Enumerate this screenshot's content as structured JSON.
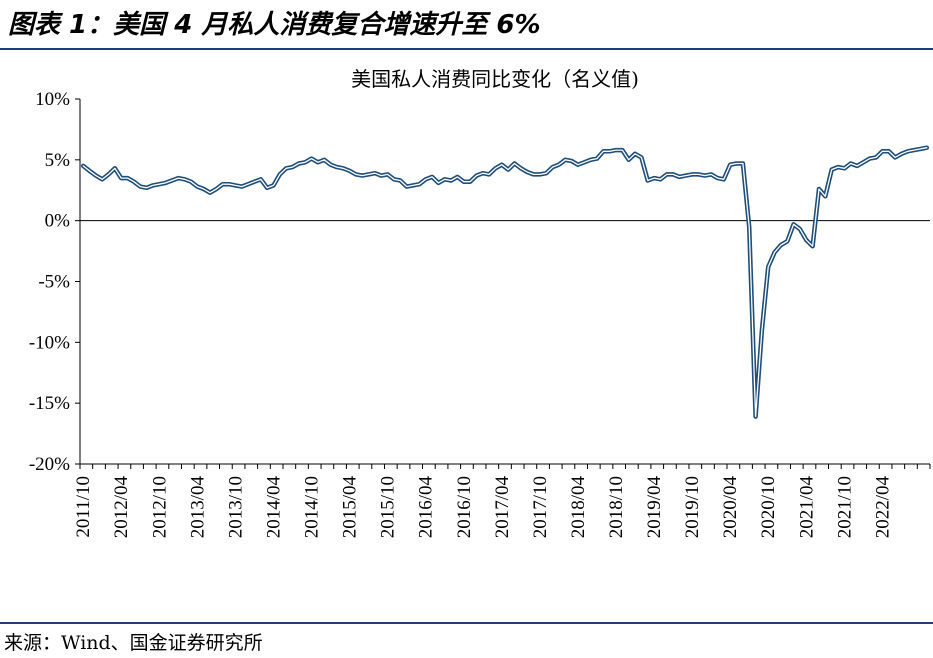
{
  "figure": {
    "title": "图表 1：美国 4 月私人消费复合增速升至 6%",
    "source": "来源：Wind、国金证券研究所"
  },
  "colors": {
    "line_outer": "#1f4e79",
    "line_inner": "#ffffff",
    "axis": "#000000",
    "rule": "#1f3f7a"
  },
  "chart_data": {
    "type": "line",
    "title": "美国私人消费同比变化（名义值)",
    "xlabel": "",
    "ylabel": "",
    "ylim": [
      -20,
      10
    ],
    "yticks": [
      10,
      5,
      0,
      -5,
      -10,
      -15,
      -20
    ],
    "ytick_labels": [
      "10%",
      "5%",
      "0%",
      "-5%",
      "-10%",
      "-15%",
      "-20%"
    ],
    "xtick_labels": [
      "2011/10",
      "2012/04",
      "2012/10",
      "2013/04",
      "2013/10",
      "2014/04",
      "2014/10",
      "2015/04",
      "2015/10",
      "2016/04",
      "2016/10",
      "2017/04",
      "2017/10",
      "2018/04",
      "2018/10",
      "2019/04",
      "2019/10",
      "2020/04",
      "2020/10",
      "2021/04",
      "2021/10",
      "2022/04"
    ],
    "grid": false,
    "legend": "none",
    "series": [
      {
        "start": "2011/10",
        "frequency": "monthly",
        "values": [
          4.5,
          4.1,
          3.7,
          3.4,
          3.8,
          4.3,
          3.5,
          3.5,
          3.2,
          2.8,
          2.7,
          2.9,
          3.0,
          3.1,
          3.3,
          3.5,
          3.4,
          3.2,
          2.8,
          2.6,
          2.3,
          2.6,
          3.0,
          3.0,
          2.9,
          2.8,
          3.0,
          3.2,
          3.4,
          2.7,
          2.9,
          3.8,
          4.3,
          4.4,
          4.7,
          4.8,
          5.1,
          4.8,
          5.0,
          4.6,
          4.4,
          4.3,
          4.1,
          3.8,
          3.7,
          3.8,
          3.9,
          3.7,
          3.8,
          3.4,
          3.3,
          2.8,
          2.9,
          3.0,
          3.4,
          3.6,
          3.1,
          3.4,
          3.3,
          3.6,
          3.2,
          3.2,
          3.7,
          3.9,
          3.8,
          4.3,
          4.6,
          4.2,
          4.7,
          4.3,
          4.0,
          3.8,
          3.8,
          3.9,
          4.4,
          4.6,
          5.0,
          4.9,
          4.6,
          4.8,
          5.0,
          5.1,
          5.7,
          5.7,
          5.8,
          5.8,
          5.0,
          5.5,
          5.2,
          3.3,
          3.5,
          3.4,
          3.8,
          3.8,
          3.6,
          3.7,
          3.8,
          3.8,
          3.7,
          3.8,
          3.5,
          3.4,
          4.6,
          4.7,
          4.7,
          -0.5,
          -16.1,
          -9.0,
          -3.8,
          -2.6,
          -2.0,
          -1.7,
          -0.3,
          -0.7,
          -1.6,
          -2.1,
          2.6,
          2.0,
          4.2,
          4.4,
          4.3,
          4.7,
          4.5,
          4.8,
          5.1,
          5.2,
          5.7,
          5.7,
          5.2,
          5.5,
          5.7,
          5.8,
          5.9,
          6.0
        ]
      }
    ]
  }
}
